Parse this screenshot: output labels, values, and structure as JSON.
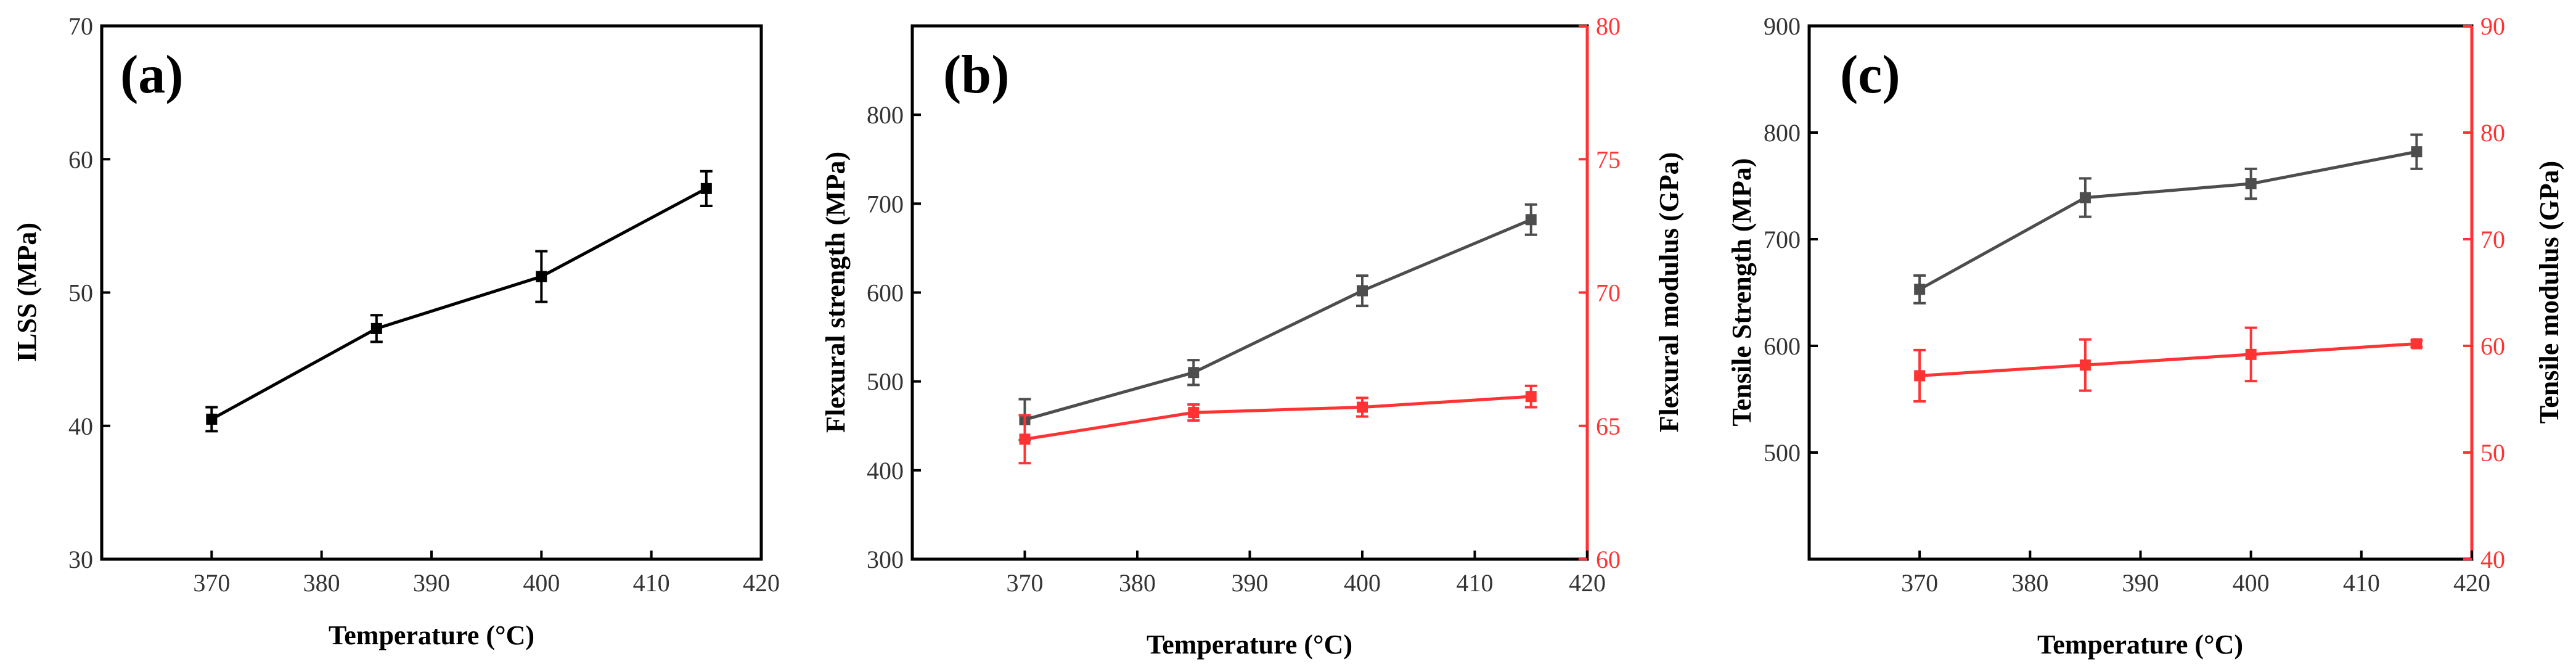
{
  "colors": {
    "black": "#000000",
    "gray": "#4d4d4d",
    "red": "#ff3333"
  },
  "chart_data": [
    {
      "type": "line",
      "panel_label": "(a)",
      "xlabel": "Temperature (°C)",
      "ylabel": "ILSS (MPa)",
      "xlim": [
        360,
        420
      ],
      "ylim": [
        30,
        70
      ],
      "x_ticks": [
        "370",
        "380",
        "390",
        "400",
        "410",
        "420"
      ],
      "y_ticks": [
        "30",
        "40",
        "50",
        "60",
        "70"
      ],
      "series": [
        {
          "name": "ILSS",
          "axis": "left",
          "color": "#000000",
          "x": [
            370,
            385,
            400,
            415
          ],
          "values": [
            40.5,
            47.3,
            51.2,
            57.8
          ],
          "errors": [
            0.9,
            1.0,
            1.9,
            1.3
          ]
        }
      ]
    },
    {
      "type": "line",
      "panel_label": "(b)",
      "xlabel": "Temperature (°C)",
      "ylabel": "Flexural strength (MPa)",
      "ylabel_right": "Flexural modulus (GPa)",
      "xlim": [
        360,
        420
      ],
      "ylim": [
        300,
        900
      ],
      "ylim_right": [
        60,
        80
      ],
      "x_ticks": [
        "370",
        "380",
        "390",
        "400",
        "410",
        "420"
      ],
      "y_ticks": [
        "300",
        "400",
        "500",
        "600",
        "700",
        "800"
      ],
      "y_ticks_right": [
        "60",
        "65",
        "70",
        "75",
        "80"
      ],
      "series": [
        {
          "name": "Flexural strength",
          "axis": "left",
          "color": "#4d4d4d",
          "x": [
            370,
            385,
            400,
            415
          ],
          "values": [
            457,
            510,
            602,
            682
          ],
          "errors": [
            23,
            14,
            17,
            17
          ]
        },
        {
          "name": "Flexural modulus",
          "axis": "right",
          "color": "#ff3333",
          "x": [
            370,
            385,
            400,
            415
          ],
          "values": [
            64.5,
            65.5,
            65.7,
            66.1
          ],
          "errors": [
            0.9,
            0.3,
            0.35,
            0.4
          ]
        }
      ]
    },
    {
      "type": "line",
      "panel_label": "(c)",
      "xlabel": "Temperature (°C)",
      "ylabel": "Tensile Strength (MPa)",
      "ylabel_right": "Tensile modulus (GPa)",
      "xlim": [
        360,
        420
      ],
      "ylim": [
        400,
        900
      ],
      "ylim_right": [
        40,
        90
      ],
      "x_ticks": [
        "370",
        "380",
        "390",
        "400",
        "410",
        "420"
      ],
      "y_ticks": [
        "500",
        "600",
        "700",
        "800",
        "900"
      ],
      "y_ticks_right": [
        "40",
        "50",
        "60",
        "70",
        "80",
        "90"
      ],
      "series": [
        {
          "name": "Tensile strength",
          "axis": "left",
          "color": "#4d4d4d",
          "x": [
            370,
            385,
            400,
            415
          ],
          "values": [
            653,
            739,
            752,
            782
          ],
          "errors": [
            13,
            18,
            14,
            16
          ]
        },
        {
          "name": "Tensile modulus",
          "axis": "right",
          "color": "#ff3333",
          "x": [
            370,
            385,
            400,
            415
          ],
          "values": [
            57.2,
            58.2,
            59.2,
            60.2
          ],
          "errors": [
            2.4,
            2.4,
            2.5,
            0.3
          ]
        }
      ]
    }
  ]
}
